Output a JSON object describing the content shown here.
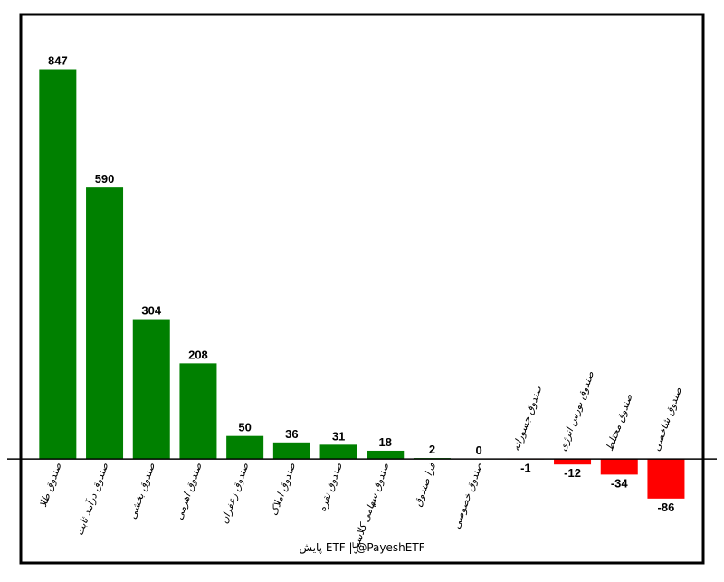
{
  "chart_data": {
    "type": "bar",
    "categories": [
      "صندوق طلا",
      "صندوق درآمد ثابت",
      "صندوق بخشی",
      "صندوق اهرمی",
      "صندوق زعفران",
      "صندوق املاک",
      "صندوق نقره",
      "صندوق سهامی کلاسیک",
      "فرا صندوق",
      "صندوق خصوصی",
      "صندوق جسورانه",
      "صندوق بورس انرژی",
      "صندوق مختلط",
      "صندوق شاخصی"
    ],
    "values": [
      847,
      590,
      304,
      208,
      50,
      36,
      31,
      18,
      2,
      0,
      -1,
      -12,
      -34,
      -86
    ],
    "positive_color": "#008000",
    "negative_color": "#ff0000",
    "ylim": [
      -226,
      966
    ],
    "footer": "پایش ETF  |  @PayeshETF"
  }
}
